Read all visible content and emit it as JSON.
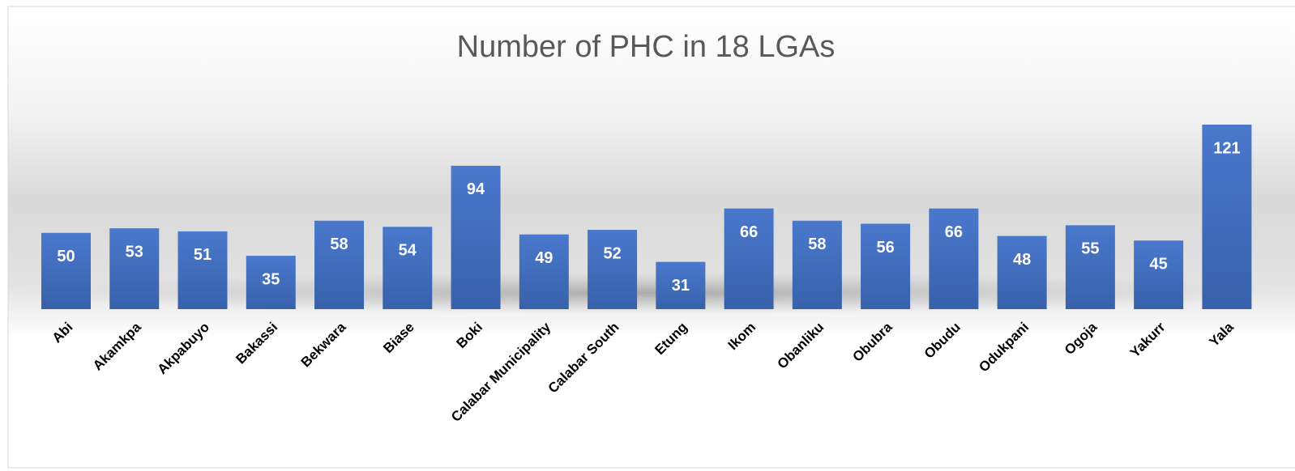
{
  "chart_data": {
    "type": "bar",
    "title": "Number of PHC in 18 LGAs",
    "categories": [
      "Abi",
      "Akamkpa",
      "Akpabuyo",
      "Bakassi",
      "Bekwara",
      "Biase",
      "Boki",
      "Calabar Municipality",
      "Calabar South",
      "Etung",
      "Ikom",
      "Obanliku",
      "Obubra",
      "Obudu",
      "Odukpani",
      "Ogoja",
      "Yakurr",
      "Yala"
    ],
    "values": [
      50,
      53,
      51,
      35,
      58,
      54,
      94,
      49,
      52,
      31,
      66,
      58,
      56,
      66,
      48,
      55,
      45,
      121
    ],
    "color": "#4472c4"
  }
}
